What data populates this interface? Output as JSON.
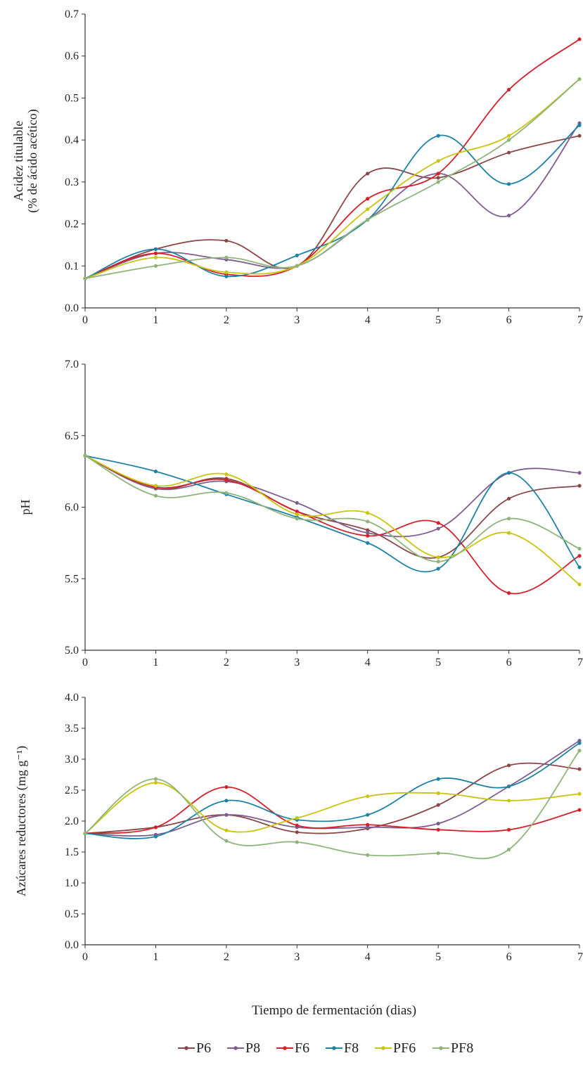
{
  "chart_data": [
    {
      "type": "line",
      "ylabel": [
        "Acidez titulable",
        "(% de ácido acético)"
      ],
      "xlabel": "",
      "xlim": [
        0,
        7
      ],
      "ylim": [
        0,
        0.7
      ],
      "x": [
        0,
        1,
        2,
        3,
        4,
        5,
        6,
        7
      ],
      "x_ticks": [
        "0",
        "1",
        "2",
        "3",
        "4",
        "5",
        "6",
        "7"
      ],
      "y_ticks": [
        {
          "value": 0.0,
          "label": "0.0"
        },
        {
          "value": 0.1,
          "label": "0.1"
        },
        {
          "value": 0.2,
          "label": "0.2"
        },
        {
          "value": 0.3,
          "label": "0.3"
        },
        {
          "value": 0.4,
          "label": "0.4"
        },
        {
          "value": 0.5,
          "label": "0.5"
        },
        {
          "value": 0.6,
          "label": "0.6"
        },
        {
          "value": 0.7,
          "label": "0.7"
        }
      ],
      "grid": false,
      "series": [
        {
          "name": "P6",
          "values": [
            0.07,
            0.14,
            0.16,
            0.1,
            0.32,
            0.31,
            0.37,
            0.41
          ]
        },
        {
          "name": "P8",
          "values": [
            0.07,
            0.13,
            0.115,
            0.1,
            0.21,
            0.32,
            0.22,
            0.44
          ]
        },
        {
          "name": "F6",
          "values": [
            0.07,
            0.13,
            0.08,
            0.1,
            0.26,
            0.32,
            0.52,
            0.64
          ]
        },
        {
          "name": "F8",
          "values": [
            0.07,
            0.14,
            0.075,
            0.125,
            0.21,
            0.41,
            0.295,
            0.435
          ]
        },
        {
          "name": "PF6",
          "values": [
            0.07,
            0.12,
            0.085,
            0.1,
            0.235,
            0.35,
            0.41,
            0.545
          ]
        },
        {
          "name": "PF8",
          "values": [
            0.07,
            0.1,
            0.12,
            0.1,
            0.21,
            0.3,
            0.4,
            0.545
          ]
        }
      ]
    },
    {
      "type": "line",
      "ylabel": [
        "pH"
      ],
      "xlabel": "",
      "xlim": [
        0,
        7
      ],
      "ylim": [
        5.0,
        7.0
      ],
      "x": [
        0,
        1,
        2,
        3,
        4,
        5,
        6,
        7
      ],
      "x_ticks": [
        "0",
        "1",
        "2",
        "3",
        "4",
        "5",
        "6",
        "7"
      ],
      "y_ticks": [
        {
          "value": 5.0,
          "label": "5.0"
        },
        {
          "value": 5.5,
          "label": "5.5"
        },
        {
          "value": 6.0,
          "label": "6.0"
        },
        {
          "value": 6.5,
          "label": "6.5"
        },
        {
          "value": 7.0,
          "label": "7.0"
        }
      ],
      "grid": false,
      "series": [
        {
          "name": "P6",
          "values": [
            6.36,
            6.13,
            6.2,
            5.97,
            5.84,
            5.65,
            6.06,
            6.15
          ]
        },
        {
          "name": "P8",
          "values": [
            6.36,
            6.13,
            6.18,
            6.03,
            5.82,
            5.85,
            6.24,
            6.24
          ]
        },
        {
          "name": "F6",
          "values": [
            6.36,
            6.14,
            6.19,
            5.97,
            5.8,
            5.89,
            5.4,
            5.66
          ]
        },
        {
          "name": "F8",
          "values": [
            6.36,
            6.25,
            6.09,
            5.93,
            5.75,
            5.57,
            6.24,
            5.58
          ]
        },
        {
          "name": "PF6",
          "values": [
            6.36,
            6.15,
            6.23,
            5.95,
            5.96,
            5.65,
            5.82,
            5.46
          ]
        },
        {
          "name": "PF8",
          "values": [
            6.36,
            6.08,
            6.1,
            5.92,
            5.9,
            5.62,
            5.92,
            5.71
          ]
        }
      ]
    },
    {
      "type": "line",
      "ylabel": [
        "Azúcares reductores (mg g⁻¹)"
      ],
      "xlabel": "Tiempo de fermentación (dias)",
      "xlim": [
        0,
        7
      ],
      "ylim": [
        0,
        4.0
      ],
      "x": [
        0,
        1,
        2,
        3,
        4,
        5,
        6,
        7
      ],
      "x_ticks": [
        "0",
        "1",
        "2",
        "3",
        "4",
        "5",
        "6",
        "7"
      ],
      "y_ticks": [
        {
          "value": 0.0,
          "label": "0.0"
        },
        {
          "value": 0.5,
          "label": "0.5"
        },
        {
          "value": 1.0,
          "label": "1.0"
        },
        {
          "value": 1.5,
          "label": "1.5"
        },
        {
          "value": 2.0,
          "label": "2.0"
        },
        {
          "value": 2.5,
          "label": "2.5"
        },
        {
          "value": 3.0,
          "label": "3.0"
        },
        {
          "value": 3.5,
          "label": "3.5"
        },
        {
          "value": 4.0,
          "label": "4.0"
        }
      ],
      "grid": false,
      "series": [
        {
          "name": "P6",
          "values": [
            1.8,
            1.9,
            2.1,
            1.82,
            1.88,
            2.26,
            2.9,
            2.84
          ]
        },
        {
          "name": "P8",
          "values": [
            1.8,
            1.78,
            2.1,
            1.9,
            1.9,
            1.96,
            2.56,
            3.3
          ]
        },
        {
          "name": "F6",
          "values": [
            1.8,
            1.9,
            2.55,
            1.93,
            1.94,
            1.86,
            1.86,
            2.18
          ]
        },
        {
          "name": "F8",
          "values": [
            1.8,
            1.75,
            2.33,
            2.02,
            2.1,
            2.68,
            2.56,
            3.26
          ]
        },
        {
          "name": "PF6",
          "values": [
            1.8,
            2.62,
            1.85,
            2.05,
            2.4,
            2.45,
            2.33,
            2.44
          ]
        },
        {
          "name": "PF8",
          "values": [
            1.8,
            2.68,
            1.68,
            1.66,
            1.45,
            1.48,
            1.54,
            3.14
          ]
        }
      ]
    }
  ],
  "legend": {
    "position": "bottom",
    "entries": [
      "P6",
      "P8",
      "F6",
      "F8",
      "PF6",
      "PF8"
    ]
  },
  "colors": {
    "P6": "#8b4747",
    "P8": "#7e5e8e",
    "F6": "#d5202a",
    "F8": "#1f82a4",
    "PF6": "#c8c40f",
    "PF8": "#8fb47a",
    "axis": "#333333"
  }
}
